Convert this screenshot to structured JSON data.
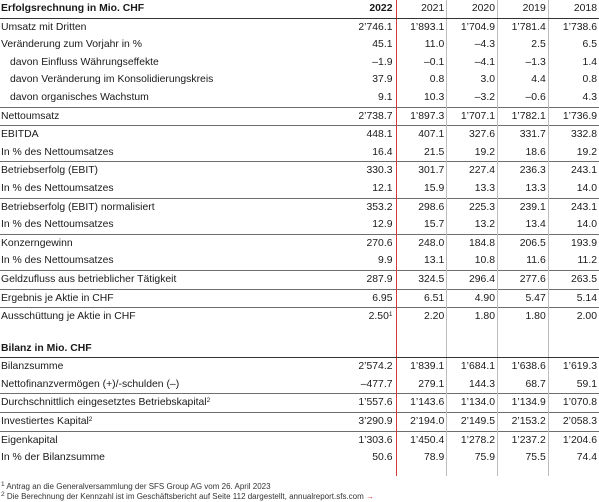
{
  "income": {
    "title": "Erfolgsrechnung in Mio. CHF",
    "years": [
      "2022",
      "2021",
      "2020",
      "2019",
      "2018"
    ],
    "rows": [
      {
        "label": "Umsatz mit Dritten",
        "values": [
          "2’746.1",
          "1’893.1",
          "1’704.9",
          "1’781.4",
          "1’738.6"
        ],
        "indent": false,
        "line": false
      },
      {
        "label": "Veränderung zum Vorjahr in %",
        "values": [
          "45.1",
          "11.0",
          "–4.3",
          "2.5",
          "6.5"
        ],
        "indent": false,
        "line": false
      },
      {
        "label": "davon Einfluss Währungseffekte",
        "values": [
          "–1.9",
          "–0.1",
          "–4.1",
          "–1.3",
          "1.4"
        ],
        "indent": true,
        "line": false
      },
      {
        "label": "davon Veränderung im Konsolidierungskreis",
        "values": [
          "37.9",
          "0.8",
          "3.0",
          "4.4",
          "0.8"
        ],
        "indent": true,
        "line": false
      },
      {
        "label": "davon organisches Wachstum",
        "values": [
          "9.1",
          "10.3",
          "–3.2",
          "–0.6",
          "4.3"
        ],
        "indent": true,
        "line": false
      },
      {
        "label": "Nettoumsatz",
        "values": [
          "2’738.7",
          "1’897.3",
          "1’707.1",
          "1’782.1",
          "1’736.9"
        ],
        "indent": false,
        "line": true
      },
      {
        "label": "EBITDA",
        "values": [
          "448.1",
          "407.1",
          "327.6",
          "331.7",
          "332.8"
        ],
        "indent": false,
        "line": true
      },
      {
        "label": "In % des Nettoumsatzes",
        "values": [
          "16.4",
          "21.5",
          "19.2",
          "18.6",
          "19.2"
        ],
        "indent": false,
        "line": false
      },
      {
        "label": "Betriebserfolg (EBIT)",
        "values": [
          "330.3",
          "301.7",
          "227.4",
          "236.3",
          "243.1"
        ],
        "indent": false,
        "line": true
      },
      {
        "label": "In % des Nettoumsatzes",
        "values": [
          "12.1",
          "15.9",
          "13.3",
          "13.3",
          "14.0"
        ],
        "indent": false,
        "line": false
      },
      {
        "label": "Betriebserfolg (EBIT) normalisiert",
        "values": [
          "353.2",
          "298.6",
          "225.3",
          "239.1",
          "243.1"
        ],
        "indent": false,
        "line": true
      },
      {
        "label": "In % des Nettoumsatzes",
        "values": [
          "12.9",
          "15.7",
          "13.2",
          "13.4",
          "14.0"
        ],
        "indent": false,
        "line": false
      },
      {
        "label": "Konzerngewinn",
        "values": [
          "270.6",
          "248.0",
          "184.8",
          "206.5",
          "193.9"
        ],
        "indent": false,
        "line": true
      },
      {
        "label": "In % des Nettoumsatzes",
        "values": [
          "9.9",
          "13.1",
          "10.8",
          "11.6",
          "11.2"
        ],
        "indent": false,
        "line": false
      },
      {
        "label": "Geldzufluss aus betrieblicher Tätigkeit",
        "values": [
          "287.9",
          "324.5",
          "296.4",
          "277.6",
          "263.5"
        ],
        "indent": false,
        "line": true
      },
      {
        "label": "Ergebnis je Aktie in CHF",
        "values": [
          "6.95",
          "6.51",
          "4.90",
          "5.47",
          "5.14"
        ],
        "indent": false,
        "line": true
      },
      {
        "label": "Ausschüttung je Aktie in CHF",
        "values": [
          "2.50",
          "2.20",
          "1.80",
          "1.80",
          "2.00"
        ],
        "indent": false,
        "line": true,
        "note": "1"
      }
    ]
  },
  "balance": {
    "title": "Bilanz in Mio. CHF",
    "rows": [
      {
        "label": "Bilanzsumme",
        "values": [
          "2’574.2",
          "1’839.1",
          "1’684.1",
          "1’638.6",
          "1’619.3"
        ],
        "indent": false,
        "line": false
      },
      {
        "label": "Nettofinanzvermögen (+)/-schulden (–)",
        "values": [
          "–477.7",
          "279.1",
          "144.3",
          "68.7",
          "59.1"
        ],
        "indent": false,
        "line": false
      },
      {
        "label": "Durchschnittlich eingesetztes Betriebskapital",
        "values": [
          "1’557.6",
          "1’143.6",
          "1’134.0",
          "1’134.9",
          "1’070.8"
        ],
        "indent": false,
        "line": true,
        "labelnote": "2"
      },
      {
        "label": "Investiertes Kapital",
        "values": [
          "3’290.9",
          "2’194.0",
          "2’149.5",
          "2’153.2",
          "2’058.3"
        ],
        "indent": false,
        "line": true,
        "labelnote": "2"
      },
      {
        "label": "Eigenkapital",
        "values": [
          "1’303.6",
          "1’450.4",
          "1’278.2",
          "1’237.2",
          "1’204.6"
        ],
        "indent": false,
        "line": true
      },
      {
        "label": "In % der Bilanzsumme",
        "values": [
          "50.6",
          "78.9",
          "75.9",
          "75.5",
          "74.4"
        ],
        "indent": false,
        "line": false
      }
    ]
  },
  "footnotes": [
    {
      "mark": "1",
      "text": "Antrag an die Generalversammlung der SFS Group AG vom 26. April 2023"
    },
    {
      "mark": "2",
      "text": "Die Berechnung der Kennzahl ist im Geschäftsbericht auf Seite 112 dargestellt, annualreport.sfs.com",
      "arrow": "→"
    }
  ],
  "colors": {
    "accent": "#d23b3b"
  }
}
